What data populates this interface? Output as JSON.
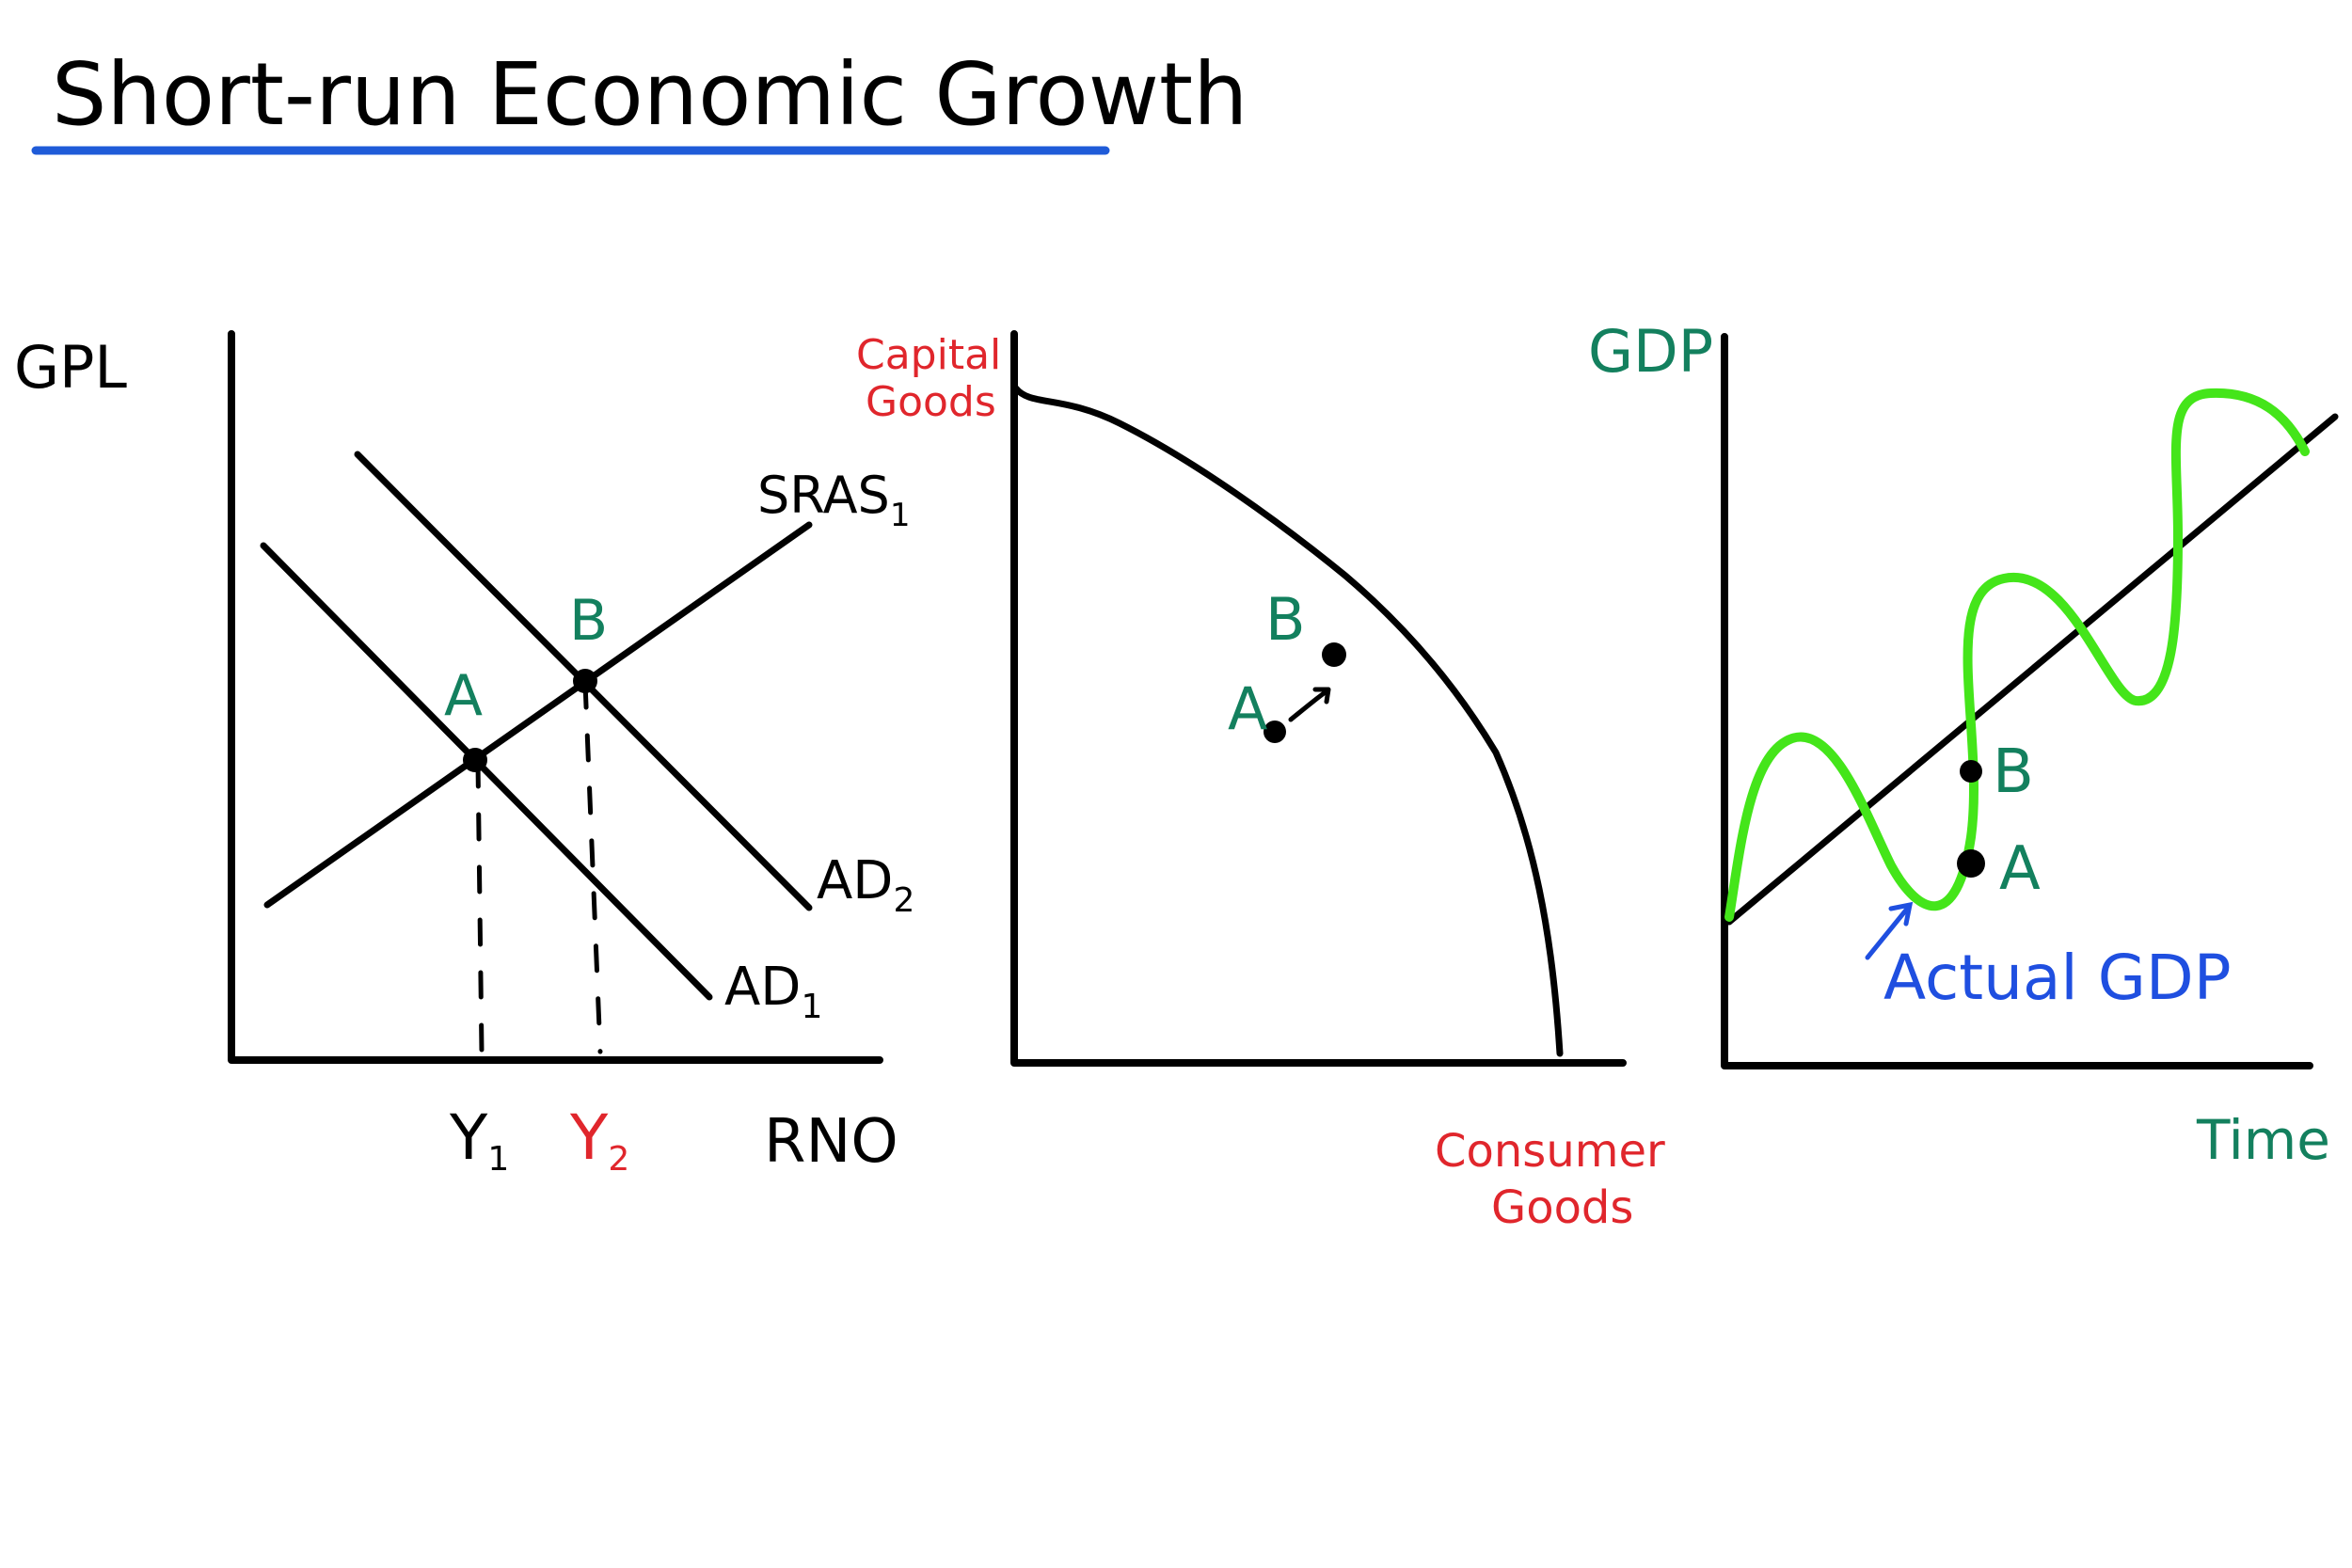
{
  "title": "Short-run Economic Growth",
  "colors": {
    "ink": "#000000",
    "title_underline": "#1f5bd8",
    "green_label": "#13805e",
    "red_label": "#e0262c",
    "blue_label": "#1f4fe0",
    "actual_gdp_curve": "#44e51a"
  },
  "ad_as": {
    "y_axis_label": "GPL",
    "x_axis_label": "RNO",
    "sras_label": "SRAS",
    "sras_subscript": "1",
    "ad1_label": "AD",
    "ad1_subscript": "1",
    "ad2_label": "AD",
    "ad2_subscript": "2",
    "point_a_label": "A",
    "point_b_label": "B",
    "y1_label": "Y",
    "y1_subscript": "1",
    "y2_label": "Y",
    "y2_subscript": "2"
  },
  "ppc": {
    "y_axis_label_line1": "Capital",
    "y_axis_label_line2": "Goods",
    "x_axis_label_line1": "Consumer",
    "x_axis_label_line2": "Goods",
    "point_a_label": "A",
    "point_b_label": "B"
  },
  "business_cycle": {
    "y_axis_label": "GDP",
    "x_axis_label": "Time",
    "point_a_label": "A",
    "point_b_label": "B",
    "actual_gdp_label": "Actual GDP"
  }
}
